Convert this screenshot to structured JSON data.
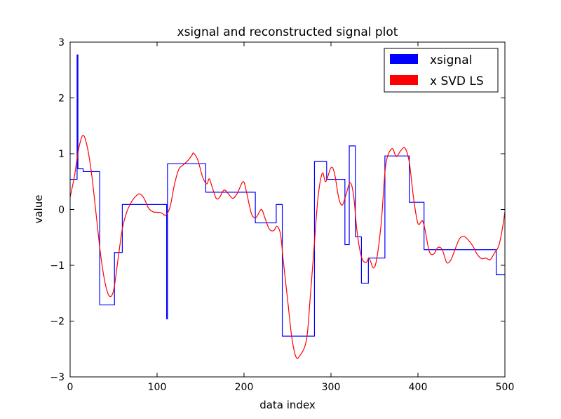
{
  "chart_data": {
    "type": "line",
    "title": "xsignal and reconstructed signal plot",
    "xlabel": "data index",
    "ylabel": "value",
    "xlim": [
      0,
      500
    ],
    "ylim": [
      -3,
      3
    ],
    "xticks": [
      0,
      100,
      200,
      300,
      400,
      500
    ],
    "yticks": [
      -3,
      -2,
      -1,
      0,
      1,
      2,
      3
    ],
    "xtick_labels": [
      "0",
      "100",
      "200",
      "300",
      "400",
      "500"
    ],
    "ytick_labels": [
      "−3",
      "−2",
      "−1",
      "0",
      "1",
      "2",
      "3"
    ],
    "grid": false,
    "legend_position": "top-right",
    "series": [
      {
        "name": "xsignal",
        "color": "#0000ff",
        "style": "step",
        "points": [
          [
            0,
            0.54
          ],
          [
            8,
            0.54
          ],
          [
            8,
            2.77
          ],
          [
            9,
            2.77
          ],
          [
            9,
            0.73
          ],
          [
            15,
            0.73
          ],
          [
            15,
            0.68
          ],
          [
            34,
            0.68
          ],
          [
            34,
            -1.71
          ],
          [
            51,
            -1.71
          ],
          [
            51,
            -0.77
          ],
          [
            60,
            -0.77
          ],
          [
            60,
            0.09
          ],
          [
            111,
            0.09
          ],
          [
            111,
            -1.96
          ],
          [
            112,
            -1.96
          ],
          [
            112,
            0.82
          ],
          [
            156,
            0.82
          ],
          [
            156,
            0.31
          ],
          [
            213,
            0.31
          ],
          [
            213,
            -0.24
          ],
          [
            237,
            -0.24
          ],
          [
            237,
            0.09
          ],
          [
            244,
            0.09
          ],
          [
            244,
            -2.27
          ],
          [
            281,
            -2.27
          ],
          [
            281,
            0.86
          ],
          [
            295,
            0.86
          ],
          [
            295,
            0.54
          ],
          [
            316,
            0.54
          ],
          [
            316,
            -0.63
          ],
          [
            321,
            -0.63
          ],
          [
            321,
            1.14
          ],
          [
            328,
            1.14
          ],
          [
            328,
            -0.49
          ],
          [
            335,
            -0.49
          ],
          [
            335,
            -1.32
          ],
          [
            343,
            -1.32
          ],
          [
            343,
            -0.87
          ],
          [
            362,
            -0.87
          ],
          [
            362,
            0.96
          ],
          [
            390,
            0.96
          ],
          [
            390,
            0.13
          ],
          [
            407,
            0.13
          ],
          [
            407,
            -0.72
          ],
          [
            490,
            -0.72
          ],
          [
            490,
            -1.17
          ],
          [
            500,
            -1.17
          ]
        ]
      },
      {
        "name": "x SVD LS",
        "color": "#ff0000",
        "style": "smooth",
        "points": [
          [
            0,
            0.22
          ],
          [
            5,
            0.6
          ],
          [
            10,
            1.1
          ],
          [
            15,
            1.33
          ],
          [
            20,
            1.1
          ],
          [
            25,
            0.6
          ],
          [
            30,
            -0.1
          ],
          [
            35,
            -0.8
          ],
          [
            40,
            -1.3
          ],
          [
            45,
            -1.55
          ],
          [
            50,
            -1.45
          ],
          [
            55,
            -0.9
          ],
          [
            60,
            -0.35
          ],
          [
            65,
            -0.05
          ],
          [
            70,
            0.12
          ],
          [
            75,
            0.23
          ],
          [
            80,
            0.28
          ],
          [
            85,
            0.2
          ],
          [
            90,
            0.03
          ],
          [
            95,
            -0.04
          ],
          [
            100,
            -0.05
          ],
          [
            105,
            -0.06
          ],
          [
            110,
            -0.1
          ],
          [
            115,
            0.05
          ],
          [
            120,
            0.45
          ],
          [
            125,
            0.72
          ],
          [
            130,
            0.8
          ],
          [
            135,
            0.87
          ],
          [
            140,
            0.97
          ],
          [
            142,
            1.01
          ],
          [
            147,
            0.88
          ],
          [
            152,
            0.6
          ],
          [
            157,
            0.46
          ],
          [
            160,
            0.55
          ],
          [
            163,
            0.42
          ],
          [
            168,
            0.2
          ],
          [
            172,
            0.22
          ],
          [
            177,
            0.35
          ],
          [
            182,
            0.28
          ],
          [
            187,
            0.2
          ],
          [
            192,
            0.28
          ],
          [
            199,
            0.5
          ],
          [
            203,
            0.3
          ],
          [
            208,
            -0.05
          ],
          [
            212,
            -0.15
          ],
          [
            215,
            -0.12
          ],
          [
            220,
            0.0
          ],
          [
            224,
            -0.15
          ],
          [
            229,
            -0.35
          ],
          [
            234,
            -0.38
          ],
          [
            238,
            -0.3
          ],
          [
            242,
            -0.45
          ],
          [
            245,
            -0.9
          ],
          [
            250,
            -1.6
          ],
          [
            255,
            -2.3
          ],
          [
            260,
            -2.65
          ],
          [
            265,
            -2.6
          ],
          [
            270,
            -2.45
          ],
          [
            273,
            -2.2
          ],
          [
            276,
            -1.6
          ],
          [
            280,
            -0.8
          ],
          [
            285,
            0.2
          ],
          [
            290,
            0.65
          ],
          [
            294,
            0.5
          ],
          [
            300,
            0.75
          ],
          [
            304,
            0.65
          ],
          [
            309,
            0.2
          ],
          [
            313,
            0.08
          ],
          [
            317,
            0.25
          ],
          [
            322,
            0.48
          ],
          [
            326,
            0.25
          ],
          [
            330,
            -0.4
          ],
          [
            335,
            -0.85
          ],
          [
            340,
            -0.95
          ],
          [
            344,
            -0.88
          ],
          [
            349,
            -1.05
          ],
          [
            353,
            -0.85
          ],
          [
            358,
            -0.2
          ],
          [
            363,
            0.8
          ],
          [
            370,
            1.09
          ],
          [
            375,
            0.95
          ],
          [
            380,
            1.05
          ],
          [
            385,
            1.1
          ],
          [
            390,
            0.85
          ],
          [
            395,
            0.2
          ],
          [
            400,
            -0.25
          ],
          [
            405,
            -0.2
          ],
          [
            408,
            -0.35
          ],
          [
            413,
            -0.75
          ],
          [
            418,
            -0.8
          ],
          [
            423,
            -0.68
          ],
          [
            428,
            -0.72
          ],
          [
            433,
            -0.95
          ],
          [
            438,
            -0.9
          ],
          [
            443,
            -0.7
          ],
          [
            448,
            -0.52
          ],
          [
            453,
            -0.48
          ],
          [
            458,
            -0.55
          ],
          [
            463,
            -0.65
          ],
          [
            468,
            -0.8
          ],
          [
            473,
            -0.88
          ],
          [
            478,
            -0.87
          ],
          [
            483,
            -0.9
          ],
          [
            488,
            -0.78
          ],
          [
            493,
            -0.65
          ],
          [
            497,
            -0.35
          ],
          [
            500,
            -0.05
          ]
        ]
      }
    ]
  }
}
